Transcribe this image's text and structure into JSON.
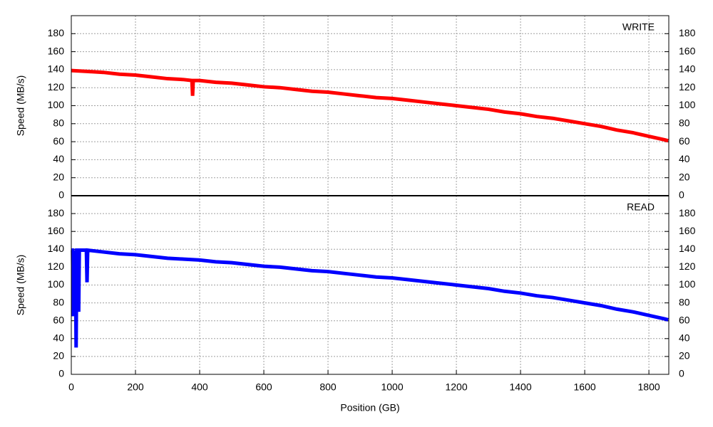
{
  "chart_data": [
    {
      "type": "line",
      "y_label": "Speed (MB/s)",
      "xlim": [
        0,
        1862
      ],
      "ylim": [
        0,
        200
      ],
      "yticks": [
        0,
        20,
        40,
        60,
        80,
        100,
        120,
        140,
        160,
        180
      ],
      "grid": true,
      "x": [
        0,
        50,
        100,
        150,
        200,
        250,
        300,
        350,
        376,
        378,
        380,
        400,
        450,
        500,
        550,
        600,
        650,
        700,
        750,
        800,
        850,
        900,
        950,
        1000,
        1050,
        1100,
        1150,
        1200,
        1250,
        1300,
        1350,
        1400,
        1450,
        1500,
        1550,
        1600,
        1650,
        1700,
        1750,
        1800,
        1850,
        1860
      ],
      "series": [
        {
          "name": "WRITE",
          "color": "#ff0000",
          "values": [
            139,
            138,
            137,
            135,
            134,
            132,
            130,
            129,
            128,
            111,
            128,
            128,
            126,
            125,
            123,
            121,
            120,
            118,
            116,
            115,
            113,
            111,
            109,
            108,
            106,
            104,
            102,
            100,
            98,
            96,
            93,
            91,
            88,
            86,
            83,
            80,
            77,
            73,
            70,
            66,
            62,
            61
          ]
        }
      ]
    },
    {
      "type": "line",
      "y_label": "Speed (MB/s)",
      "x_label": "Position (GB)",
      "xlim": [
        0,
        1862
      ],
      "ylim": [
        0,
        200
      ],
      "yticks": [
        0,
        20,
        40,
        60,
        80,
        100,
        120,
        140,
        160,
        180
      ],
      "grid": true,
      "xticks": [
        0,
        200,
        400,
        600,
        800,
        1000,
        1200,
        1400,
        1600,
        1800
      ],
      "x": [
        0,
        4,
        6,
        8,
        11,
        13,
        15,
        17,
        19,
        23,
        25,
        27,
        47,
        49,
        51,
        100,
        150,
        200,
        250,
        300,
        350,
        400,
        450,
        500,
        550,
        600,
        650,
        700,
        750,
        800,
        850,
        900,
        950,
        1000,
        1050,
        1100,
        1150,
        1200,
        1250,
        1300,
        1350,
        1400,
        1450,
        1500,
        1550,
        1600,
        1650,
        1700,
        1750,
        1800,
        1850,
        1860
      ],
      "series": [
        {
          "name": "READ",
          "color": "#0000ff",
          "values": [
            139,
            139,
            65,
            139,
            88,
            139,
            30,
            139,
            139,
            70,
            139,
            139,
            139,
            103,
            139,
            137,
            135,
            134,
            132,
            130,
            129,
            128,
            126,
            125,
            123,
            121,
            120,
            118,
            116,
            115,
            113,
            111,
            109,
            108,
            106,
            104,
            102,
            100,
            98,
            96,
            93,
            91,
            88,
            86,
            83,
            80,
            77,
            73,
            70,
            66,
            62,
            61
          ]
        }
      ]
    }
  ]
}
